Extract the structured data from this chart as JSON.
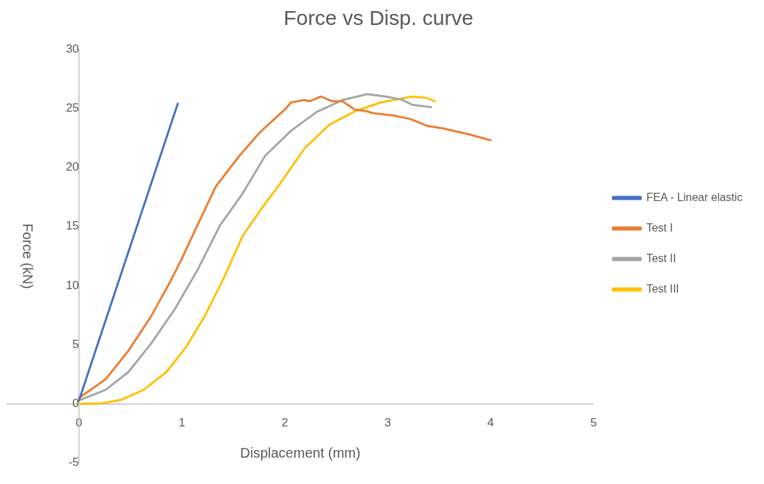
{
  "chart_data": {
    "type": "line",
    "title": "Force vs Disp. curve",
    "xlabel": "Displacement (mm)",
    "ylabel": "Force (kN)",
    "xlim": [
      -0.7,
      5
    ],
    "xticks": [
      0,
      1,
      2,
      3,
      4,
      5
    ],
    "ylim": [
      -5,
      30
    ],
    "yticks": [
      -5,
      0,
      5,
      10,
      15,
      20,
      25,
      30
    ],
    "grid": false,
    "legend": "right",
    "marker": "none",
    "line_style": "solid",
    "series": [
      {
        "name": "FEA - Linear elastic",
        "color": "#4472c4",
        "x": [
          0,
          0.96
        ],
        "values": [
          0.3,
          25.4
        ]
      },
      {
        "name": "Test I",
        "color": "#ed7d31",
        "x": [
          0,
          0.26,
          0.48,
          0.7,
          0.89,
          1.0,
          1.15,
          1.33,
          1.56,
          1.74,
          1.81,
          1.85,
          2.0,
          2.06,
          2.19,
          2.24,
          2.35,
          2.46,
          2.56,
          2.68,
          2.8,
          2.85,
          3.05,
          3.22,
          3.39,
          3.54,
          3.79,
          4.0
        ],
        "values": [
          0.5,
          2.1,
          4.5,
          7.4,
          10.4,
          12.3,
          15.1,
          18.4,
          21.0,
          22.8,
          23.4,
          23.7,
          24.9,
          25.5,
          25.7,
          25.6,
          26.0,
          25.6,
          25.6,
          24.9,
          24.75,
          24.6,
          24.4,
          24.1,
          23.5,
          23.3,
          22.8,
          22.3
        ]
      },
      {
        "name": "Test II",
        "color": "#a5a5a5",
        "x": [
          0,
          0.26,
          0.48,
          0.7,
          0.93,
          1.15,
          1.37,
          1.59,
          1.81,
          2.06,
          2.31,
          2.56,
          2.8,
          2.98,
          3.13,
          3.24,
          3.42
        ],
        "values": [
          0.3,
          1.2,
          2.7,
          5.1,
          8.0,
          11.3,
          15.1,
          17.8,
          21.0,
          23.1,
          24.7,
          25.7,
          26.2,
          26.0,
          25.75,
          25.3,
          25.1
        ]
      },
      {
        "name": "Test III",
        "color": "#ffc000",
        "x": [
          0,
          0.22,
          0.41,
          0.63,
          0.85,
          1.04,
          1.22,
          1.41,
          1.59,
          1.78,
          1.96,
          2.19,
          2.43,
          2.68,
          2.93,
          3.24,
          3.37,
          3.46
        ],
        "values": [
          0,
          0.05,
          0.35,
          1.2,
          2.7,
          4.8,
          7.4,
          10.7,
          14.2,
          16.6,
          18.7,
          21.6,
          23.6,
          24.75,
          25.5,
          26.0,
          25.9,
          25.6
        ]
      }
    ]
  }
}
